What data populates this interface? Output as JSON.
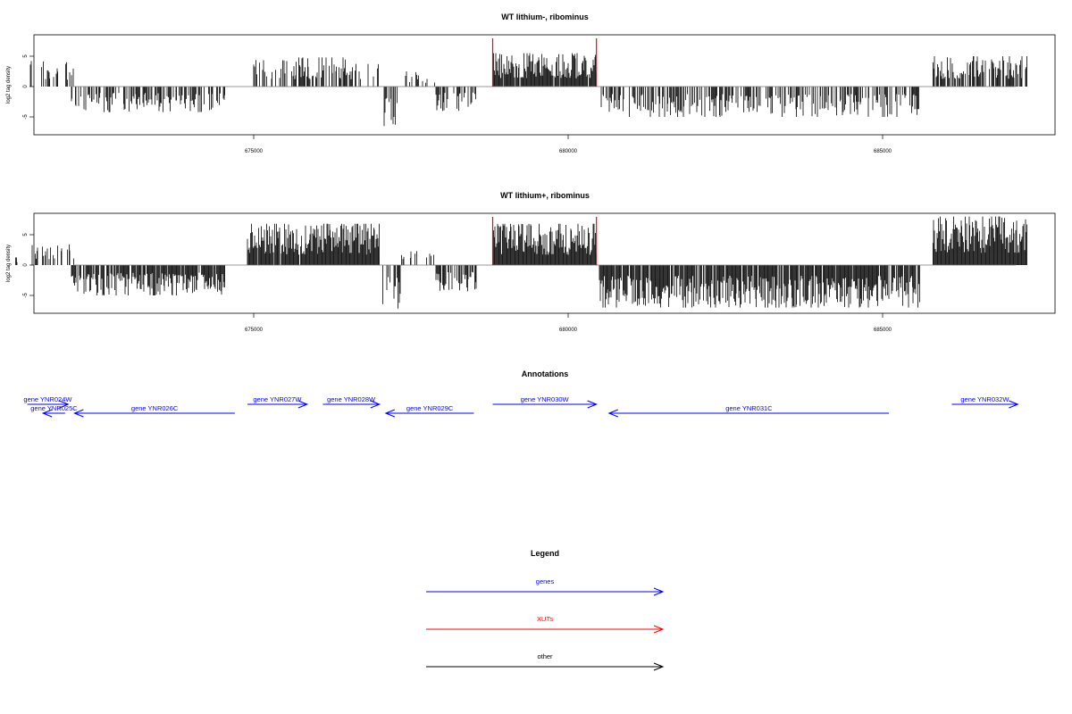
{
  "chart_data": [
    {
      "type": "bar",
      "title": "WT lithium-, ribominus",
      "ylabel": "log2 tag density",
      "xlim": [
        671100,
        687500
      ],
      "ylim": [
        -8,
        8
      ],
      "x_ticks": [
        675000,
        680000,
        685000
      ],
      "y_ticks": [
        -5,
        0,
        5
      ],
      "xut_markers": [
        678800,
        680450
      ],
      "segments": [
        {
          "start": 671200,
          "end": 671250,
          "sign": 1,
          "max": 2.2,
          "density": 0.2
        },
        {
          "start": 671450,
          "end": 672150,
          "sign": 1,
          "max": 4.2,
          "density": 0.35
        },
        {
          "start": 672100,
          "end": 674550,
          "sign": -1,
          "max": 4.2,
          "density": 0.5
        },
        {
          "start": 675000,
          "end": 677000,
          "sign": 1,
          "max": 4.8,
          "density": 0.5
        },
        {
          "start": 677050,
          "end": 677350,
          "sign": -1,
          "max": 6.5,
          "density": 0.5
        },
        {
          "start": 677350,
          "end": 677900,
          "sign": 1,
          "max": 2.5,
          "density": 0.25
        },
        {
          "start": 677900,
          "end": 678550,
          "sign": -1,
          "max": 4.0,
          "density": 0.5
        },
        {
          "start": 678800,
          "end": 680450,
          "sign": 1,
          "max": 5.5,
          "density": 0.95
        },
        {
          "start": 680500,
          "end": 685600,
          "sign": -1,
          "max": 5.0,
          "density": 0.55
        },
        {
          "start": 685800,
          "end": 687300,
          "sign": 1,
          "max": 5.0,
          "density": 0.65
        }
      ]
    },
    {
      "type": "bar",
      "title": "WT lithium+, ribominus",
      "ylabel": "log2 tag density",
      "xlim": [
        671100,
        687500
      ],
      "ylim": [
        -8,
        8
      ],
      "x_ticks": [
        675000,
        680000,
        685000
      ],
      "y_ticks": [
        -5,
        0,
        5
      ],
      "xut_markers": [
        678800,
        680450
      ],
      "segments": [
        {
          "start": 671200,
          "end": 671250,
          "sign": 1,
          "max": 1.5,
          "density": 0.2
        },
        {
          "start": 671450,
          "end": 672150,
          "sign": 1,
          "max": 3.4,
          "density": 0.35
        },
        {
          "start": 672100,
          "end": 674550,
          "sign": -1,
          "max": 5.0,
          "density": 0.8
        },
        {
          "start": 674900,
          "end": 677000,
          "sign": 1,
          "max": 6.8,
          "density": 0.95
        },
        {
          "start": 677050,
          "end": 677350,
          "sign": -1,
          "max": 7.5,
          "density": 0.6
        },
        {
          "start": 677350,
          "end": 677900,
          "sign": 1,
          "max": 2.5,
          "density": 0.3
        },
        {
          "start": 677900,
          "end": 678550,
          "sign": -1,
          "max": 4.5,
          "density": 0.7
        },
        {
          "start": 678800,
          "end": 680450,
          "sign": 1,
          "max": 6.8,
          "density": 1.0
        },
        {
          "start": 680500,
          "end": 685600,
          "sign": -1,
          "max": 7.0,
          "density": 0.9
        },
        {
          "start": 685800,
          "end": 687300,
          "sign": 1,
          "max": 8.0,
          "density": 1.0
        }
      ]
    }
  ],
  "annotations": {
    "title": "Annotations",
    "genes": [
      {
        "label": "gene YNR024W",
        "start": 671400,
        "end": 672050,
        "strand": "+",
        "row": 0
      },
      {
        "label": "gene YNR025C",
        "start": 671650,
        "end": 672000,
        "strand": "-",
        "row": 1
      },
      {
        "label": "gene YNR026C",
        "start": 672150,
        "end": 674700,
        "strand": "-",
        "row": 1
      },
      {
        "label": "gene YNR027W",
        "start": 674900,
        "end": 675850,
        "strand": "+",
        "row": 0
      },
      {
        "label": "gene YNR028W",
        "start": 676100,
        "end": 677000,
        "strand": "+",
        "row": 0
      },
      {
        "label": "gene YNR029C",
        "start": 677100,
        "end": 678500,
        "strand": "-",
        "row": 1
      },
      {
        "label": "gene YNR030W",
        "start": 678800,
        "end": 680450,
        "strand": "+",
        "row": 0
      },
      {
        "label": "gene YNR031C",
        "start": 680650,
        "end": 685100,
        "strand": "-",
        "row": 1
      },
      {
        "label": "gene YNR032W",
        "start": 686100,
        "end": 687150,
        "strand": "+",
        "row": 0
      }
    ]
  },
  "legend": {
    "title": "Legend",
    "items": [
      {
        "label": "genes",
        "color": "#0000ff"
      },
      {
        "label": "XUTs",
        "color": "#ff0000"
      },
      {
        "label": "other",
        "color": "#000000"
      }
    ]
  }
}
